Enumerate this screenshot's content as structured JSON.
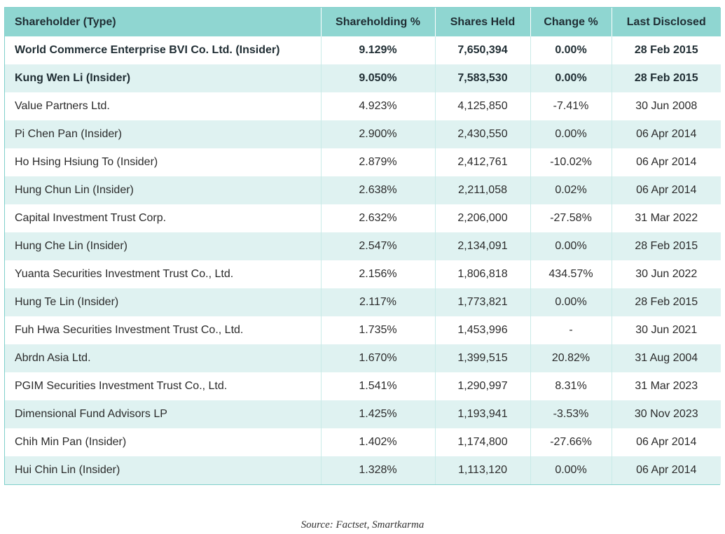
{
  "table": {
    "headers": {
      "shareholder": "Shareholder (Type)",
      "shareholding": "Shareholding %",
      "shares": "Shares Held",
      "change": "Change %",
      "disclosed": "Last Disclosed"
    },
    "rows": [
      {
        "name": "World Commerce Enterprise BVI Co. Ltd. (Insider)",
        "pct": "9.129%",
        "shares": "7,650,394",
        "change": "0.00%",
        "date": "28 Feb 2015",
        "bold": true
      },
      {
        "name": "Kung Wen Li (Insider)",
        "pct": "9.050%",
        "shares": "7,583,530",
        "change": "0.00%",
        "date": "28 Feb 2015",
        "bold": true
      },
      {
        "name": "Value Partners Ltd.",
        "pct": "4.923%",
        "shares": "4,125,850",
        "change": "-7.41%",
        "date": "30 Jun 2008",
        "bold": false
      },
      {
        "name": "Pi Chen Pan (Insider)",
        "pct": "2.900%",
        "shares": "2,430,550",
        "change": "0.00%",
        "date": "06 Apr 2014",
        "bold": false
      },
      {
        "name": "Ho Hsing Hsiung To (Insider)",
        "pct": "2.879%",
        "shares": "2,412,761",
        "change": "-10.02%",
        "date": "06 Apr 2014",
        "bold": false
      },
      {
        "name": "Hung Chun Lin (Insider)",
        "pct": "2.638%",
        "shares": "2,211,058",
        "change": "0.02%",
        "date": "06 Apr 2014",
        "bold": false
      },
      {
        "name": "Capital Investment Trust Corp.",
        "pct": "2.632%",
        "shares": "2,206,000",
        "change": "-27.58%",
        "date": "31 Mar 2022",
        "bold": false
      },
      {
        "name": "Hung Che Lin (Insider)",
        "pct": "2.547%",
        "shares": "2,134,091",
        "change": "0.00%",
        "date": "28 Feb 2015",
        "bold": false
      },
      {
        "name": "Yuanta Securities Investment Trust Co., Ltd.",
        "pct": "2.156%",
        "shares": "1,806,818",
        "change": "434.57%",
        "date": "30 Jun 2022",
        "bold": false
      },
      {
        "name": "Hung Te Lin (Insider)",
        "pct": "2.117%",
        "shares": "1,773,821",
        "change": "0.00%",
        "date": "28 Feb 2015",
        "bold": false
      },
      {
        "name": "Fuh Hwa Securities Investment Trust Co., Ltd.",
        "pct": "1.735%",
        "shares": "1,453,996",
        "change": "-",
        "date": "30 Jun 2021",
        "bold": false
      },
      {
        "name": "Abrdn Asia Ltd.",
        "pct": "1.670%",
        "shares": "1,399,515",
        "change": "20.82%",
        "date": "31 Aug 2004",
        "bold": false
      },
      {
        "name": "PGIM Securities Investment Trust Co., Ltd.",
        "pct": "1.541%",
        "shares": "1,290,997",
        "change": "8.31%",
        "date": "31 Mar 2023",
        "bold": false
      },
      {
        "name": "Dimensional Fund Advisors LP",
        "pct": "1.425%",
        "shares": "1,193,941",
        "change": "-3.53%",
        "date": "30 Nov 2023",
        "bold": false
      },
      {
        "name": "Chih Min Pan (Insider)",
        "pct": "1.402%",
        "shares": "1,174,800",
        "change": "-27.66%",
        "date": "06 Apr 2014",
        "bold": false
      },
      {
        "name": "Hui Chin Lin (Insider)",
        "pct": "1.328%",
        "shares": "1,113,120",
        "change": "0.00%",
        "date": "06 Apr 2014",
        "bold": false
      }
    ]
  },
  "source": "Source: Factset, Smartkarma",
  "colors": {
    "header_bg": "#8fd6d1",
    "stripe_bg": "#dff2f1",
    "border": "#7fcfcb"
  }
}
